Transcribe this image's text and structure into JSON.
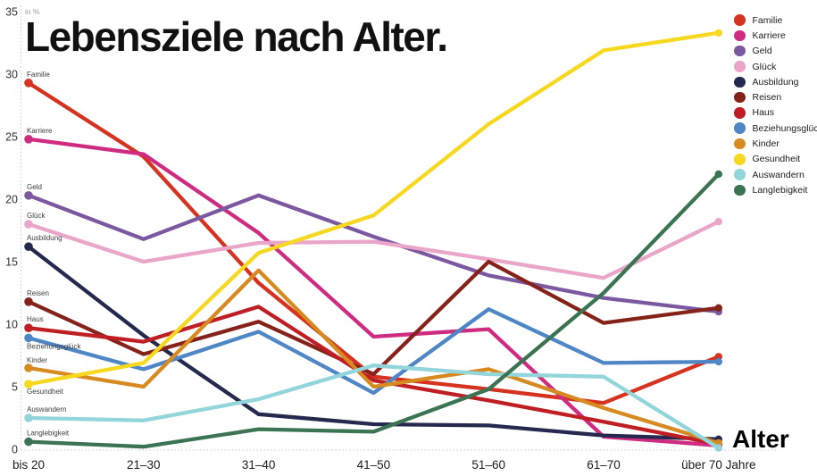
{
  "title": "Lebensziele nach Alter.",
  "chart_data": {
    "type": "line",
    "title": "Lebensziele nach Alter.",
    "unit_label": "in %",
    "x_axis_title": "Alter",
    "categories": [
      "bis 20",
      "21–30",
      "31–40",
      "41–50",
      "51–60",
      "61–70",
      "über 70 Jahre"
    ],
    "y_ticks": [
      0,
      5,
      10,
      15,
      20,
      25,
      30,
      35
    ],
    "ylim": [
      0,
      35
    ],
    "grid": false,
    "legend_position": "top-right",
    "series": [
      {
        "name": "Familie",
        "color": "#d53220",
        "values": [
          29.3,
          23.4,
          13.3,
          5.8,
          4.8,
          3.7,
          7.4
        ],
        "label_dy": -7
      },
      {
        "name": "Karriere",
        "color": "#cf2b80",
        "values": [
          24.8,
          23.6,
          17.3,
          9.0,
          9.6,
          1.0,
          0.3
        ],
        "label_dy": -7
      },
      {
        "name": "Geld",
        "color": "#7b58a0",
        "values": [
          20.3,
          16.8,
          20.3,
          17.0,
          13.9,
          12.1,
          11.0
        ],
        "label_dy": -7
      },
      {
        "name": "Glück",
        "color": "#e9a6c8",
        "values": [
          18.0,
          15.0,
          16.5,
          16.6,
          15.2,
          13.7,
          18.2
        ],
        "label_dy": -7
      },
      {
        "name": "Ausbildung",
        "color": "#25294e",
        "values": [
          16.2,
          9.1,
          2.8,
          2.0,
          1.9,
          1.1,
          0.8
        ],
        "label_dy": -7
      },
      {
        "name": "Reisen",
        "color": "#85231a",
        "values": [
          11.8,
          7.6,
          10.2,
          6.0,
          15.0,
          10.1,
          11.3
        ],
        "label_dy": -7
      },
      {
        "name": "Haus",
        "color": "#bf1e24",
        "values": [
          9.7,
          8.6,
          11.4,
          5.5,
          3.9,
          2.2,
          0.4
        ],
        "label_dy": -7
      },
      {
        "name": "Beziehungsglück",
        "color": "#4e86c6",
        "values": [
          8.9,
          6.4,
          9.4,
          4.5,
          11.2,
          6.9,
          7.0
        ],
        "label_dy": 12
      },
      {
        "name": "Kinder",
        "color": "#d68a20",
        "values": [
          6.5,
          5.0,
          14.3,
          5.0,
          6.4,
          3.3,
          0.5
        ],
        "label_dy": -6
      },
      {
        "name": "Gesundheit",
        "color": "#f6d81e",
        "values": [
          5.2,
          6.9,
          15.7,
          18.7,
          26.0,
          31.9,
          33.3
        ],
        "label_dy": 11
      },
      {
        "name": "Auswandern",
        "color": "#92d5db",
        "values": [
          2.5,
          2.3,
          4.0,
          6.7,
          6.0,
          5.8,
          0.1
        ],
        "label_dy": -7
      },
      {
        "name": "Langlebigkeit",
        "color": "#3b7452",
        "values": [
          0.6,
          0.2,
          1.6,
          1.4,
          4.8,
          12.5,
          22.0
        ],
        "label_dy": -7
      }
    ]
  }
}
